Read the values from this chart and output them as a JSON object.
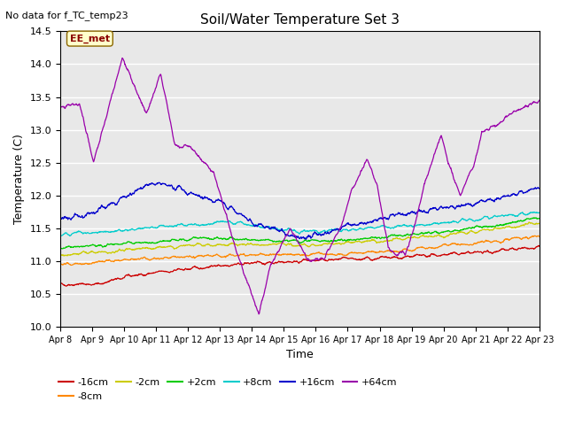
{
  "title": "Soil/Water Temperature Set 3",
  "xlabel": "Time",
  "ylabel": "Temperature (C)",
  "ylim": [
    10.0,
    14.5
  ],
  "xlim": [
    0,
    15
  ],
  "plot_bg_color": "#e8e8e8",
  "no_data_label": "No data for f_TC_temp23",
  "annotation_label": "EE_met",
  "series": {
    "-16cm": {
      "color": "#cc0000"
    },
    "-8cm": {
      "color": "#ff8800"
    },
    "-2cm": {
      "color": "#cccc00"
    },
    "+2cm": {
      "color": "#00cc00"
    },
    "+8cm": {
      "color": "#00cccc"
    },
    "+16cm": {
      "color": "#0000cc"
    },
    "+64cm": {
      "color": "#9900aa"
    }
  },
  "tick_labels": [
    "Apr 8",
    "Apr 9",
    "Apr 10",
    "Apr 11",
    "Apr 12",
    "Apr 13",
    "Apr 14",
    "Apr 15",
    "Apr 16",
    "Apr 17",
    "Apr 18",
    "Apr 19",
    "Apr 20",
    "Apr 21",
    "Apr 22",
    "Apr 23"
  ],
  "yticks": [
    10.0,
    10.5,
    11.0,
    11.5,
    12.0,
    12.5,
    13.0,
    13.5,
    14.0,
    14.5
  ]
}
